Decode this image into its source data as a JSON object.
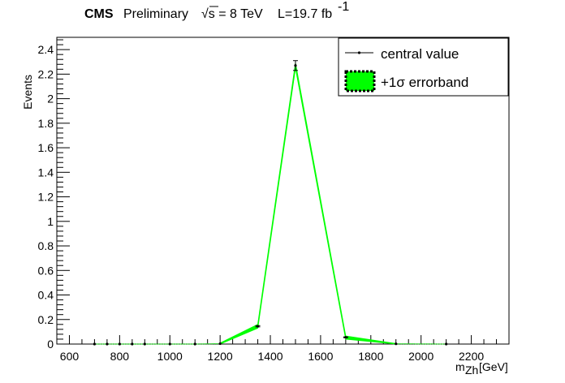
{
  "header": {
    "cms": "CMS",
    "preliminary": "Preliminary",
    "sqrt": "√s = 8 TeV",
    "lumi": "L=19.7 fb",
    "lumi_exp": "-1"
  },
  "chart_data": {
    "type": "line",
    "title": "",
    "xlabel": "m",
    "xlabel_sub": "Zh",
    "xlabel_unit": "[GeV]",
    "ylabel": "Events",
    "xlim": [
      550,
      2350
    ],
    "ylim": [
      0,
      2.5
    ],
    "xticks": [
      600,
      800,
      1000,
      1200,
      1400,
      1600,
      1800,
      2000,
      2200
    ],
    "yticks": [
      0,
      0.2,
      0.4,
      0.6,
      0.8,
      1,
      1.2,
      1.4,
      1.6,
      1.8,
      2,
      2.2,
      2.4
    ],
    "ytick_labels": [
      "0",
      "0.2",
      "0.4",
      "0.6",
      "0.8",
      "1",
      "1.2",
      "1.4",
      "1.6",
      "1.8",
      "2",
      "2.2",
      "2.4"
    ],
    "series": [
      {
        "name": "central value",
        "x": [
          700,
          750,
          800,
          850,
          900,
          1000,
          1100,
          1200,
          1350,
          1500,
          1700,
          1900,
          2100
        ],
        "values": [
          0,
          0,
          0,
          0,
          0,
          0,
          0,
          0.003,
          0.145,
          2.27,
          0.055,
          0.002,
          0
        ],
        "errors": [
          0,
          0,
          0,
          0,
          0,
          0,
          0,
          0,
          0.005,
          0.04,
          0.003,
          0,
          0
        ],
        "color": "#000000"
      },
      {
        "name": "+1σ errorband",
        "x": [
          1200,
          1350,
          1500,
          1700,
          1900
        ],
        "lower": [
          0.0,
          0.13,
          2.25,
          0.04,
          0.0
        ],
        "upper": [
          0.008,
          0.16,
          2.29,
          0.065,
          0.004
        ],
        "color": "#00ff00"
      }
    ],
    "legend": {
      "position": "top-right",
      "entries": [
        "central value",
        "+1σ errorband"
      ]
    },
    "grid": false
  }
}
